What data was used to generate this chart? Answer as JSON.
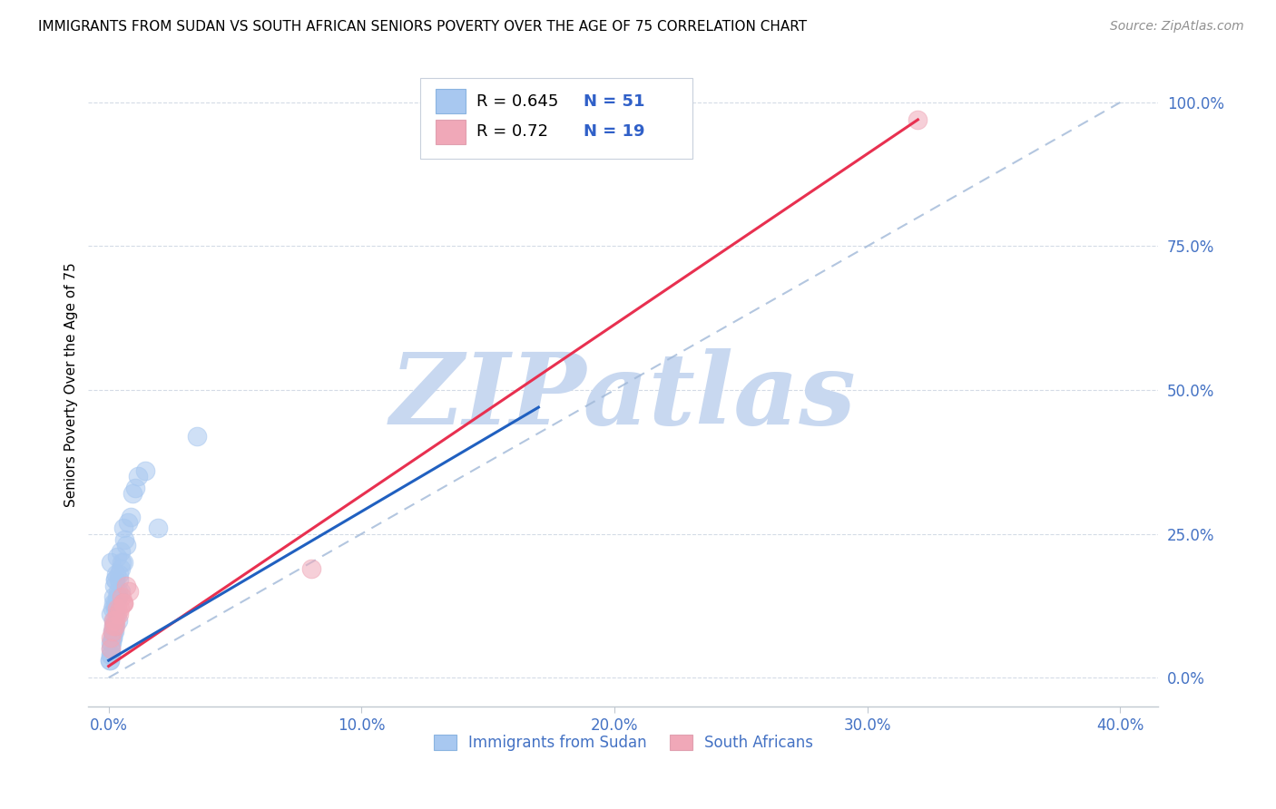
{
  "title": "IMMIGRANTS FROM SUDAN VS SOUTH AFRICAN SENIORS POVERTY OVER THE AGE OF 75 CORRELATION CHART",
  "source": "Source: ZipAtlas.com",
  "ylabel": "Seniors Poverty Over the Age of 75",
  "x_tick_labels": [
    "0.0%",
    "10.0%",
    "20.0%",
    "30.0%",
    "40.0%"
  ],
  "x_tick_values": [
    0.0,
    10.0,
    20.0,
    30.0,
    40.0
  ],
  "y_tick_labels": [
    "100.0%",
    "75.0%",
    "50.0%",
    "25.0%",
    "0.0%"
  ],
  "y_tick_values": [
    100.0,
    75.0,
    50.0,
    25.0,
    0.0
  ],
  "xlim": [
    -0.8,
    41.5
  ],
  "ylim": [
    -5.0,
    107.0
  ],
  "blue_R": 0.645,
  "blue_N": 51,
  "pink_R": 0.72,
  "pink_N": 19,
  "blue_color": "#A8C8F0",
  "pink_color": "#F0A8B8",
  "blue_line_color": "#2060C0",
  "pink_line_color": "#E83050",
  "watermark": "ZIPatlas",
  "watermark_color": "#C8D8F0",
  "blue_scatter_x": [
    0.18,
    0.28,
    0.1,
    0.38,
    0.2,
    0.14,
    0.24,
    0.3,
    0.48,
    0.1,
    0.33,
    0.58,
    0.38,
    0.2,
    0.1,
    0.48,
    0.28,
    0.78,
    0.95,
    1.15,
    1.45,
    0.14,
    0.22,
    0.18,
    0.28,
    0.08,
    0.04,
    0.38,
    0.32,
    0.48,
    0.58,
    0.68,
    0.88,
    1.05,
    0.42,
    0.52,
    0.62,
    1.95,
    0.09,
    0.16,
    0.12,
    0.06,
    0.22,
    0.18,
    0.08,
    0.14,
    0.28,
    0.22,
    0.36,
    0.42,
    3.5
  ],
  "blue_scatter_y": [
    14.0,
    17.0,
    20.0,
    10.0,
    8.0,
    12.0,
    16.0,
    18.0,
    22.0,
    11.0,
    21.0,
    26.0,
    14.0,
    9.0,
    6.0,
    15.0,
    13.0,
    27.0,
    32.0,
    35.0,
    36.0,
    8.0,
    9.0,
    13.0,
    17.0,
    4.0,
    3.0,
    15.0,
    14.0,
    19.0,
    20.0,
    23.0,
    28.0,
    33.0,
    18.0,
    20.0,
    24.0,
    26.0,
    5.0,
    7.0,
    6.0,
    3.0,
    8.0,
    10.0,
    4.0,
    7.0,
    12.0,
    9.0,
    14.0,
    17.0,
    42.0
  ],
  "pink_scatter_x": [
    0.2,
    0.35,
    0.5,
    0.7,
    0.4,
    0.6,
    0.8,
    0.1,
    0.15,
    0.08,
    0.25,
    0.35,
    0.28,
    0.18,
    0.55,
    0.45,
    0.6,
    8.0,
    32.0
  ],
  "pink_scatter_y": [
    10.0,
    12.0,
    14.0,
    16.0,
    11.0,
    13.0,
    15.0,
    7.0,
    8.0,
    5.0,
    9.0,
    11.0,
    10.0,
    9.0,
    13.0,
    12.0,
    13.0,
    19.0,
    97.0
  ],
  "blue_trendline_x": [
    0.0,
    17.0
  ],
  "blue_trendline_y": [
    3.0,
    47.0
  ],
  "pink_trendline_x": [
    0.0,
    32.0
  ],
  "pink_trendline_y": [
    2.0,
    97.0
  ],
  "diagonal_line_x": [
    0.0,
    40.0
  ],
  "diagonal_line_y": [
    0.0,
    100.0
  ]
}
